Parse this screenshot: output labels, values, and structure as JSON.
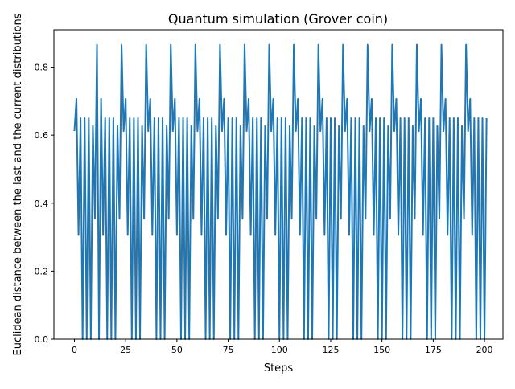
{
  "colors": {
    "line": "#1f77b4",
    "axes": "#000000",
    "background": "#ffffff"
  },
  "chart_data": {
    "type": "line",
    "title": "Quantum simulation (Grover coin)",
    "xlabel": "Steps",
    "ylabel": "Euclidean distance between the last and the current distributions",
    "xlim": [
      -10,
      209
    ],
    "ylim": [
      0,
      0.91
    ],
    "x_ticks": [
      0,
      25,
      50,
      75,
      100,
      125,
      150,
      175,
      200
    ],
    "y_ticks": [
      0.0,
      0.2,
      0.4,
      0.6,
      0.8
    ],
    "x_tick_labels": [
      "0",
      "25",
      "50",
      "75",
      "100",
      "125",
      "150",
      "175",
      "200"
    ],
    "y_tick_labels": [
      "0.0",
      "0.2",
      "0.4",
      "0.6",
      "0.8"
    ],
    "grid": false,
    "legend": "none",
    "series": [
      {
        "x_start": 0,
        "x_step": 1,
        "values": [
          0.612,
          0.707,
          0.306,
          0.65,
          0.0,
          0.65,
          0.0,
          0.65,
          0.0,
          0.627,
          0.354,
          0.866,
          0.0,
          0.707,
          0.306,
          0.65,
          0.0,
          0.65,
          0.0,
          0.65,
          0.0,
          0.627,
          0.354,
          0.866,
          0.612,
          0.707,
          0.306,
          0.65,
          0.0,
          0.65,
          0.0,
          0.65,
          0.0,
          0.627,
          0.354,
          0.866,
          0.612,
          0.707,
          0.306,
          0.65,
          0.0,
          0.65,
          0.0,
          0.65,
          0.0,
          0.627,
          0.354,
          0.866,
          0.612,
          0.707,
          0.306,
          0.65,
          0.0,
          0.65,
          0.0,
          0.65,
          0.0,
          0.627,
          0.354,
          0.866,
          0.612,
          0.707,
          0.306,
          0.65,
          0.0,
          0.65,
          0.0,
          0.65,
          0.0,
          0.627,
          0.354,
          0.866,
          0.612,
          0.707,
          0.306,
          0.65,
          0.0,
          0.65,
          0.0,
          0.65,
          0.0,
          0.627,
          0.354,
          0.866,
          0.612,
          0.707,
          0.306,
          0.65,
          0.0,
          0.65,
          0.0,
          0.65,
          0.0,
          0.627,
          0.354,
          0.866,
          0.612,
          0.707,
          0.306,
          0.65,
          0.0,
          0.65,
          0.0,
          0.65,
          0.0,
          0.627,
          0.354,
          0.866,
          0.612,
          0.707,
          0.306,
          0.65,
          0.0,
          0.65,
          0.0,
          0.65,
          0.0,
          0.627,
          0.354,
          0.866,
          0.612,
          0.707,
          0.306,
          0.65,
          0.0,
          0.65,
          0.0,
          0.65,
          0.0,
          0.627,
          0.354,
          0.866,
          0.612,
          0.707,
          0.306,
          0.65,
          0.0,
          0.65,
          0.0,
          0.65,
          0.0,
          0.627,
          0.354,
          0.866,
          0.612,
          0.707,
          0.306,
          0.65,
          0.0,
          0.65,
          0.0,
          0.65,
          0.0,
          0.627,
          0.354,
          0.866,
          0.612,
          0.707,
          0.306,
          0.65,
          0.0,
          0.65,
          0.0,
          0.65,
          0.0,
          0.627,
          0.354,
          0.866,
          0.612,
          0.707,
          0.306,
          0.65,
          0.0,
          0.65,
          0.0,
          0.65,
          0.0,
          0.627,
          0.354,
          0.866,
          0.612,
          0.707,
          0.306,
          0.65,
          0.0,
          0.65,
          0.0,
          0.65,
          0.0,
          0.627,
          0.354,
          0.866,
          0.612,
          0.707,
          0.306,
          0.65,
          0.0,
          0.65,
          0.0,
          0.65,
          0.0,
          0.65
        ]
      }
    ]
  }
}
